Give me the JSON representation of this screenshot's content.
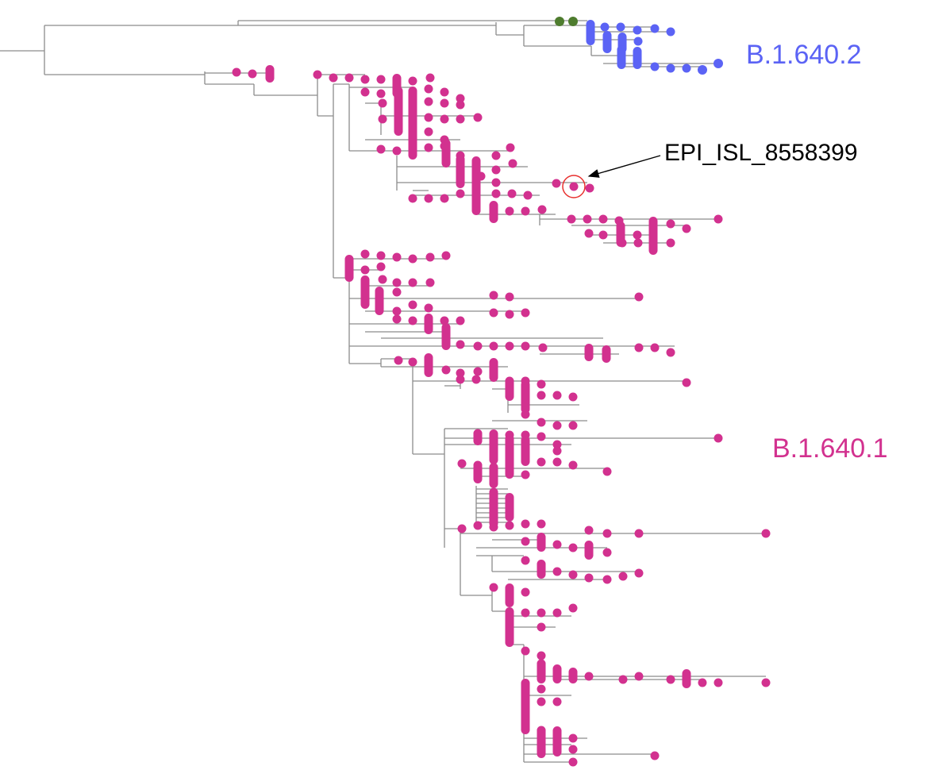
{
  "tree": {
    "clades": [
      {
        "name": "B.1.640.2",
        "color": "#5b63f5"
      },
      {
        "name": "B.1.640.1",
        "color": "#d2318f"
      }
    ],
    "outgroup_color": "#4e7c2e",
    "branch_color": "#8c8c8c",
    "highlight": {
      "label": "EPI_ISL_8558399",
      "circle_color": "#e8302e"
    }
  }
}
